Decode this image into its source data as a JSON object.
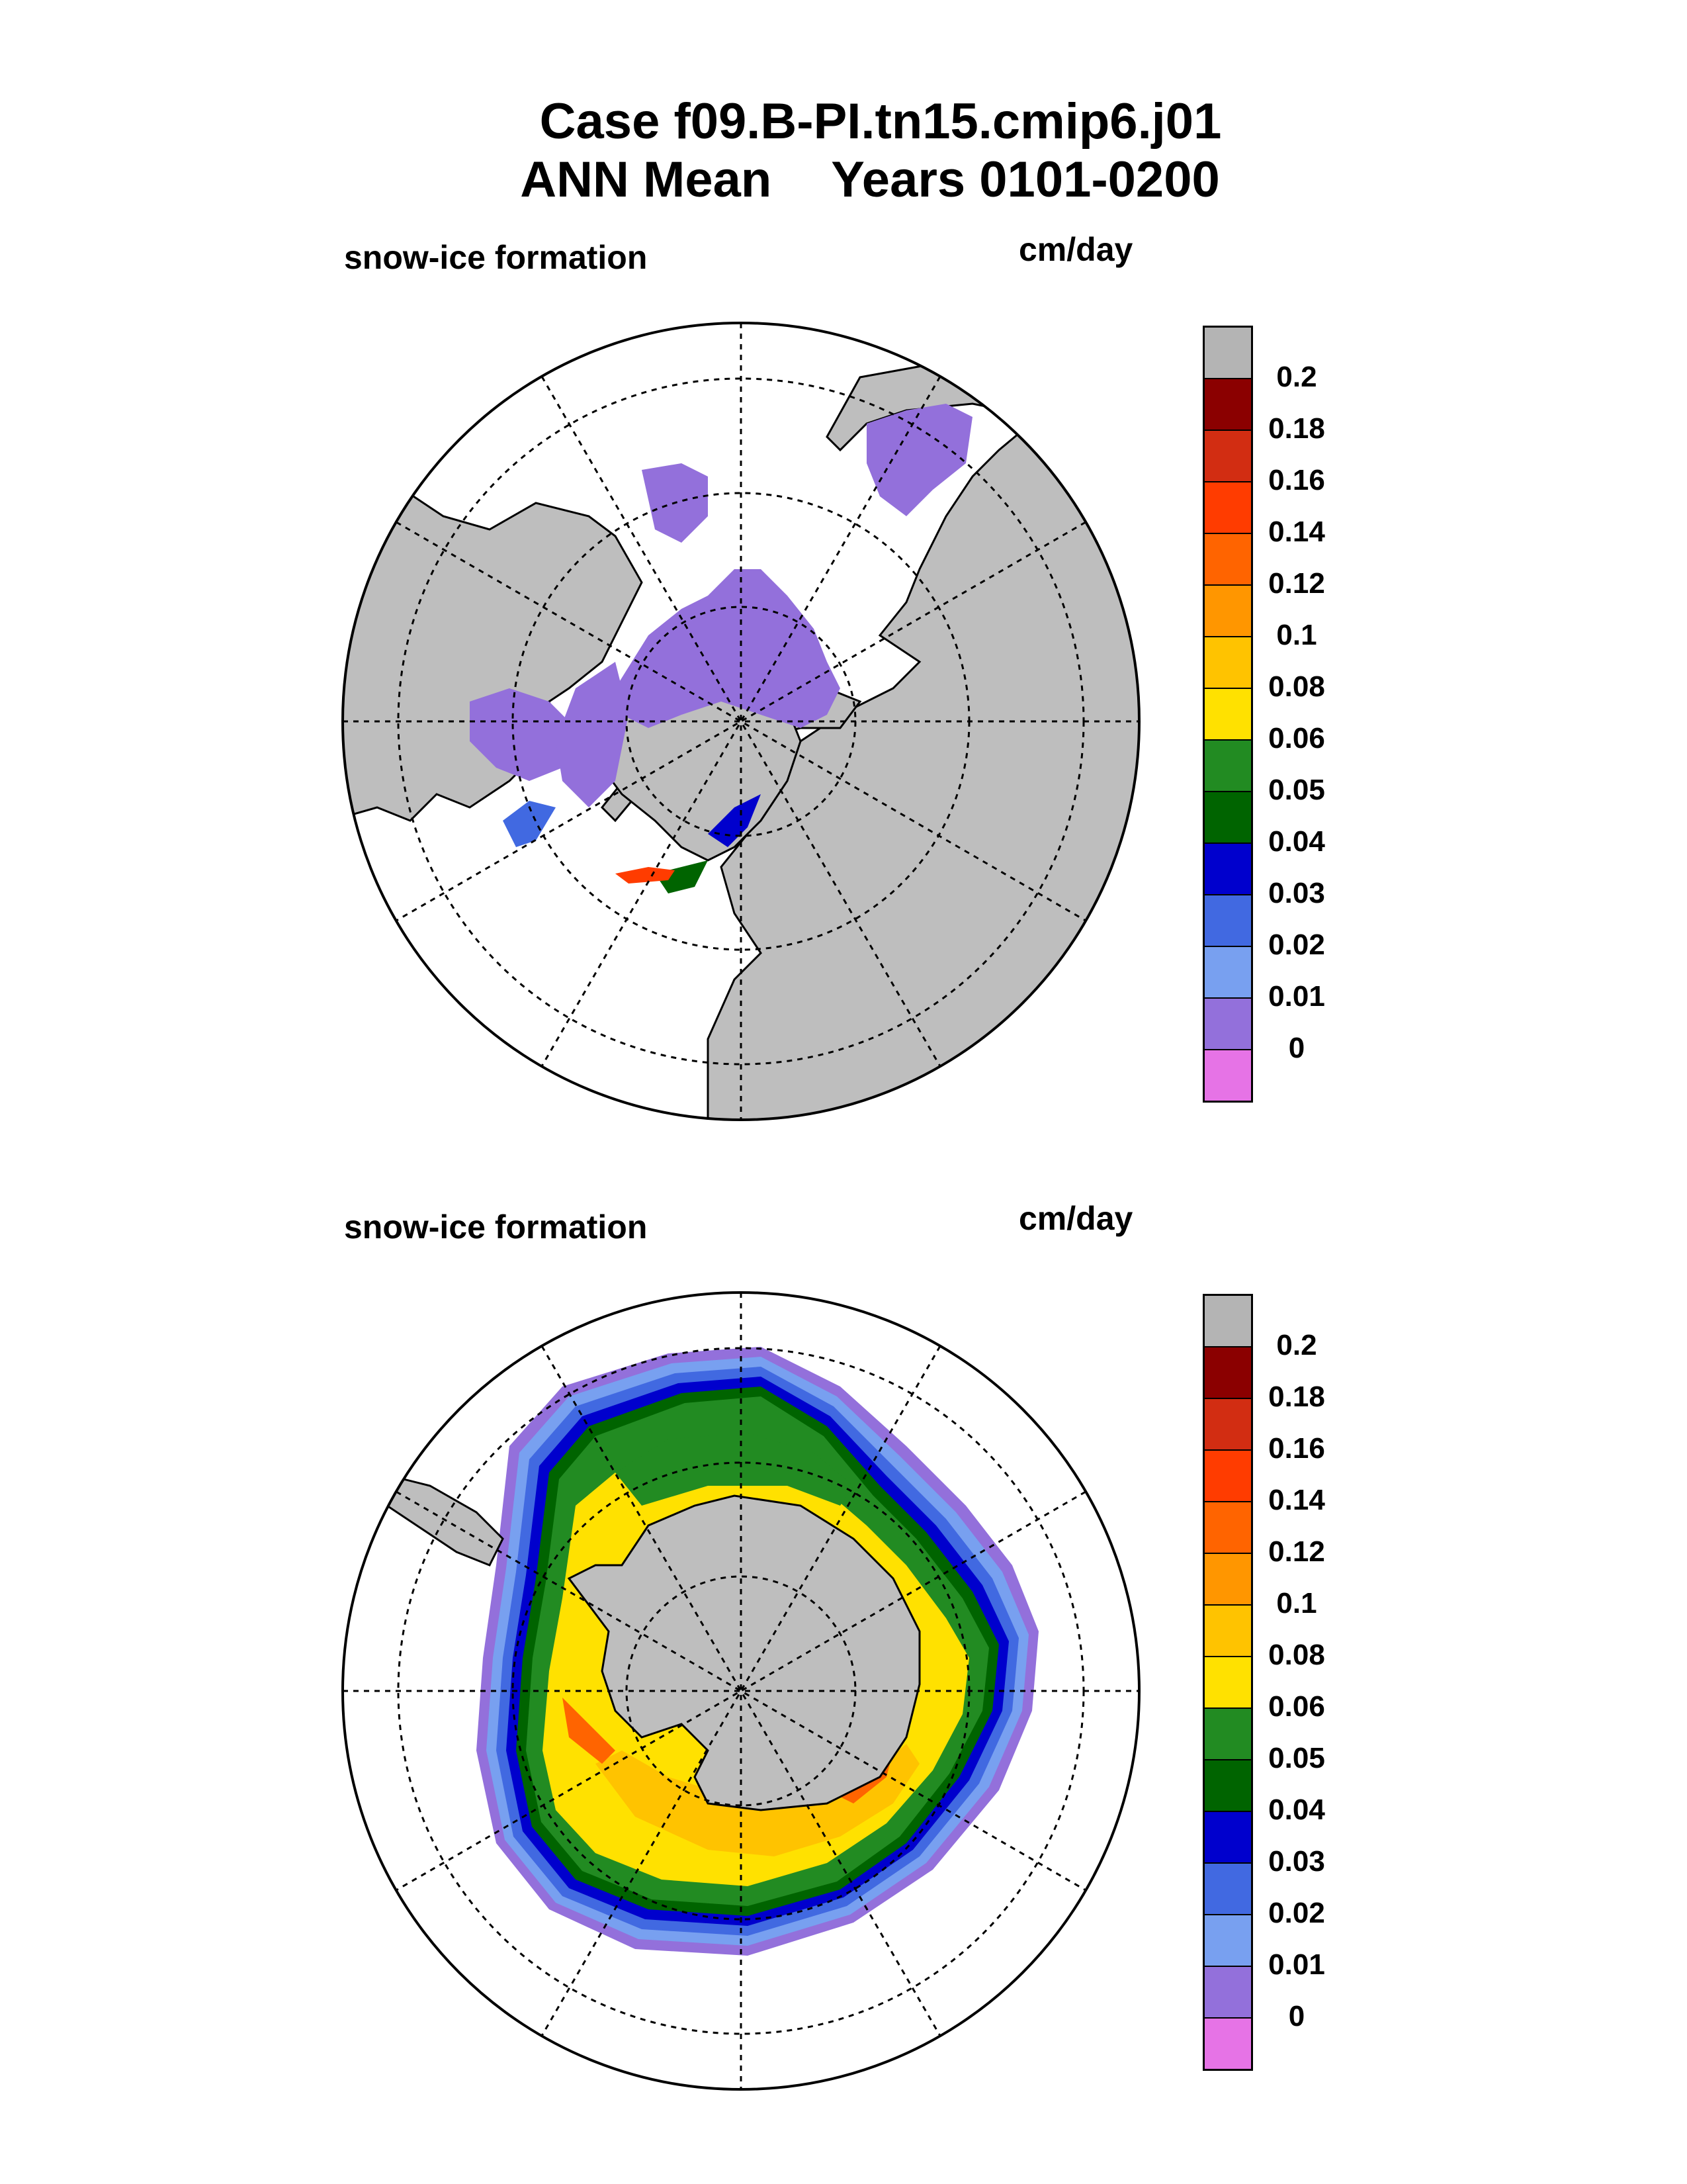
{
  "title": {
    "line1": "Case f09.B-PI.tn15.cmip6.j01",
    "line2_left": "ANN Mean",
    "line2_right": "Years 0101-0200"
  },
  "panels": [
    {
      "id": "nh",
      "variable_label": "snow-ice formation",
      "units_label": "cm/day"
    },
    {
      "id": "sh",
      "variable_label": "snow-ice formation",
      "units_label": "cm/day"
    }
  ],
  "colorbar": {
    "labels": [
      "0.2",
      "0.18",
      "0.16",
      "0.14",
      "0.12",
      "0.1",
      "0.08",
      "0.06",
      "0.05",
      "0.04",
      "0.03",
      "0.02",
      "0.01",
      "0"
    ],
    "colors": [
      "#b4b4b4",
      "#8b0000",
      "#d22d12",
      "#ff3c00",
      "#ff6400",
      "#ff9600",
      "#ffc300",
      "#ffe100",
      "#228b22",
      "#006400",
      "#0000cd",
      "#4169e1",
      "#78a0f0",
      "#9370db",
      "#e673e6"
    ]
  },
  "colors": {
    "land": "#bebebe",
    "background": "#ffffff"
  }
}
